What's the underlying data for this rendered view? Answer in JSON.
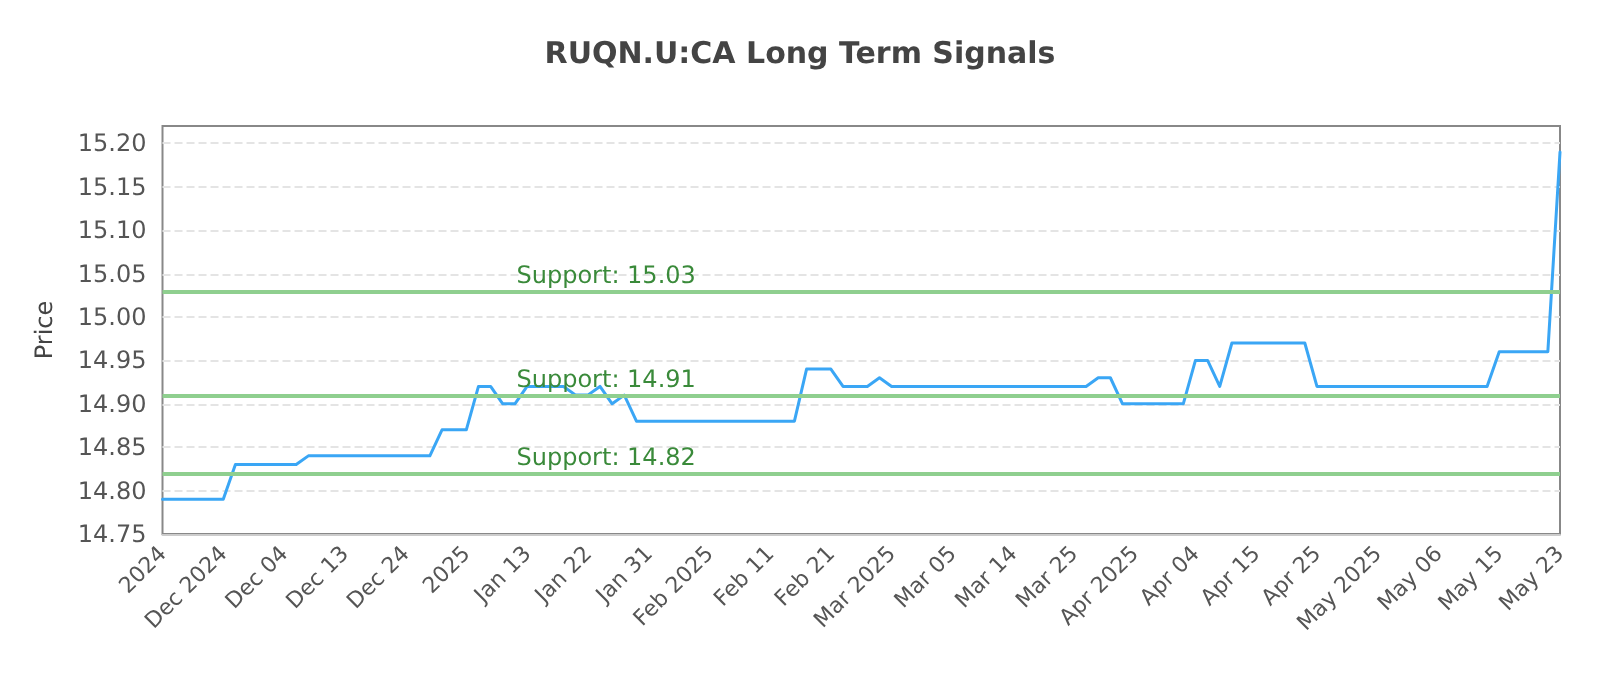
{
  "chart_data": {
    "type": "line",
    "title": "RUQN.U:CA Long Term Signals",
    "ylabel": "Price",
    "categories": [
      "2024",
      null,
      null,
      null,
      null,
      "Dec 2024",
      null,
      null,
      null,
      null,
      "Dec 04",
      null,
      null,
      null,
      null,
      "Dec 13",
      null,
      null,
      null,
      null,
      "Dec 24",
      null,
      null,
      null,
      null,
      "2025",
      null,
      null,
      null,
      null,
      "Jan 13",
      null,
      null,
      null,
      null,
      "Jan 22",
      null,
      null,
      null,
      null,
      "Jan 31",
      null,
      null,
      null,
      null,
      "Feb 2025",
      null,
      null,
      null,
      null,
      "Feb 11",
      null,
      null,
      null,
      null,
      "Feb 21",
      null,
      null,
      null,
      null,
      "Mar 2025",
      null,
      null,
      null,
      null,
      "Mar 05",
      null,
      null,
      null,
      null,
      "Mar 14",
      null,
      null,
      null,
      null,
      "Mar 25",
      null,
      null,
      null,
      null,
      "Apr 2025",
      null,
      null,
      null,
      null,
      "Apr 04",
      null,
      null,
      null,
      null,
      "Apr 15",
      null,
      null,
      null,
      null,
      "Apr 25",
      null,
      null,
      null,
      null,
      "May 2025",
      null,
      null,
      null,
      null,
      "May 06",
      null,
      null,
      null,
      null,
      "May 15",
      null,
      null,
      null,
      null,
      "May 23"
    ],
    "series": [
      {
        "color": "#3aa6f5",
        "values": [
          14.79,
          14.79,
          14.79,
          14.79,
          14.79,
          14.79,
          14.83,
          14.83,
          14.83,
          14.83,
          14.83,
          14.83,
          14.84,
          14.84,
          14.84,
          14.84,
          14.84,
          14.84,
          14.84,
          14.84,
          14.84,
          14.84,
          14.84,
          14.87,
          14.87,
          14.87,
          14.92,
          14.92,
          14.9,
          14.9,
          14.92,
          14.92,
          14.92,
          14.92,
          14.91,
          14.91,
          14.92,
          14.9,
          14.91,
          14.88,
          14.88,
          14.88,
          14.88,
          14.88,
          14.88,
          14.88,
          14.88,
          14.88,
          14.88,
          14.88,
          14.88,
          14.88,
          14.88,
          14.94,
          14.94,
          14.94,
          14.92,
          14.92,
          14.92,
          14.93,
          14.92,
          14.92,
          14.92,
          14.92,
          14.92,
          14.92,
          14.92,
          14.92,
          14.92,
          14.92,
          14.92,
          14.92,
          14.92,
          14.92,
          14.92,
          14.92,
          14.92,
          14.93,
          14.93,
          14.9,
          14.9,
          14.9,
          14.9,
          14.9,
          14.9,
          14.95,
          14.95,
          14.92,
          14.97,
          14.97,
          14.97,
          14.97,
          14.97,
          14.97,
          14.97,
          14.92,
          14.92,
          14.92,
          14.92,
          14.92,
          14.92,
          14.92,
          14.92,
          14.92,
          14.92,
          14.92,
          14.92,
          14.92,
          14.92,
          14.92,
          14.96,
          14.96,
          14.96,
          14.96,
          14.96,
          15.19
        ]
      }
    ],
    "ylim": [
      14.75,
      15.22
    ],
    "yticks": [
      {
        "value": 14.75,
        "label": "14.75"
      },
      {
        "value": 14.8,
        "label": "14.80"
      },
      {
        "value": 14.85,
        "label": "14.85"
      },
      {
        "value": 14.9,
        "label": "14.90"
      },
      {
        "value": 14.95,
        "label": "14.95"
      },
      {
        "value": 15.0,
        "label": "15.00"
      },
      {
        "value": 15.05,
        "label": "15.05"
      },
      {
        "value": 15.1,
        "label": "15.10"
      },
      {
        "value": 15.15,
        "label": "15.15"
      },
      {
        "value": 15.2,
        "label": "15.20"
      }
    ],
    "grid": "y",
    "marker": "none",
    "line_style": "solid",
    "ref_lines": [
      {
        "axis": "y",
        "value": 15.03,
        "label": "Support: 15.03",
        "color": "#8fcf8f"
      },
      {
        "axis": "y",
        "value": 14.91,
        "label": "Support: 14.91",
        "color": "#8fcf8f"
      },
      {
        "axis": "y",
        "value": 14.82,
        "label": "Support: 14.82",
        "color": "#8fcf8f"
      }
    ]
  }
}
